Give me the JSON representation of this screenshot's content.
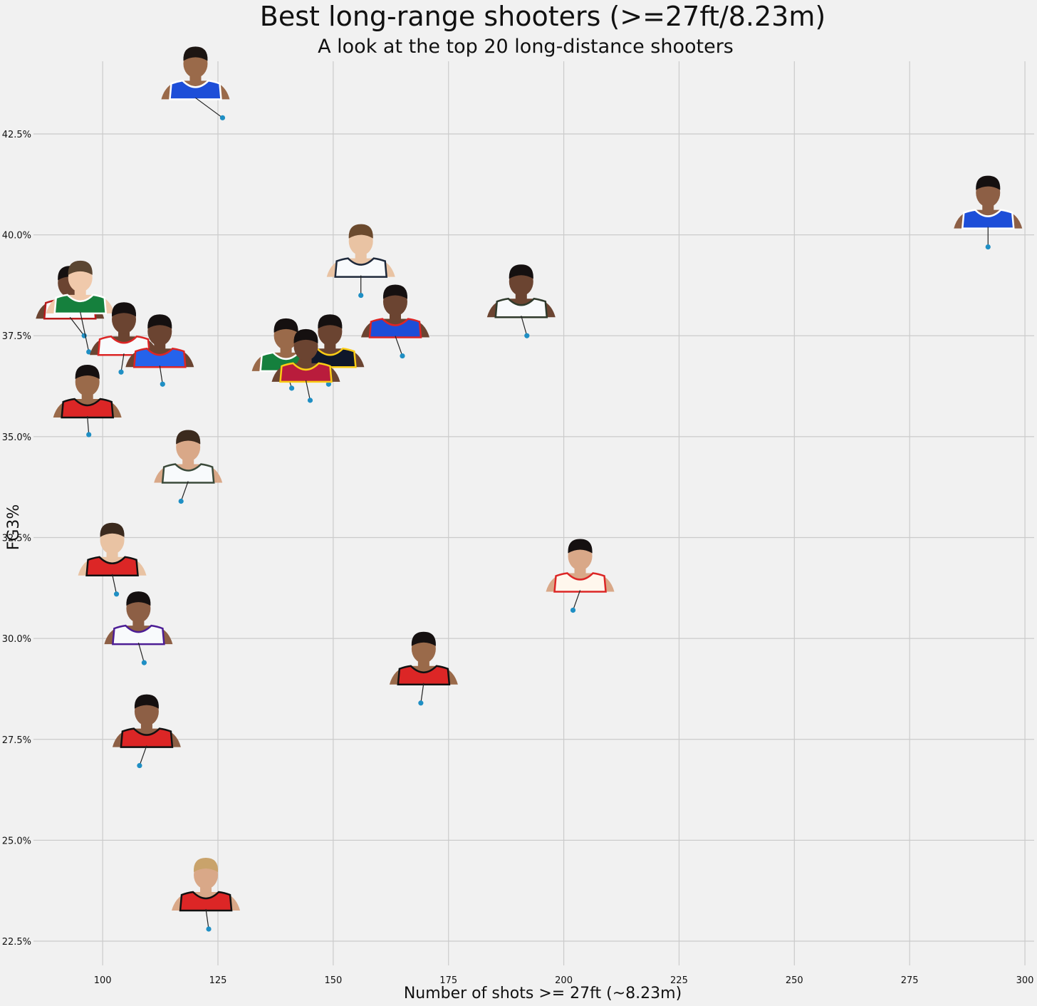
{
  "chart_data": {
    "type": "scatter",
    "title": "Best long-range shooters (>=27ft/8.23m)",
    "subtitle": "A look at the top 20 long-distance shooters",
    "xlabel": "Number of shots >= 27ft (~8.23m)",
    "ylabel": "FG3%",
    "xlim": [
      85,
      302
    ],
    "ylim": [
      21.9,
      44.3
    ],
    "xticks": [
      100,
      125,
      150,
      175,
      200,
      225,
      250,
      275,
      300
    ],
    "yticks": [
      22.5,
      25.0,
      27.5,
      30.0,
      32.5,
      35.0,
      37.5,
      40.0,
      42.5
    ],
    "ytick_labels": [
      "22.5%",
      "25.0%",
      "27.5%",
      "30.0%",
      "32.5%",
      "35.0%",
      "37.5%",
      "40.0%",
      "42.5%"
    ],
    "grid": true,
    "marker_color": "#1f8fc4",
    "points": [
      {
        "x": 126,
        "y": 42.9,
        "jersey": "#1d4ed8",
        "trim": "#ffffff",
        "skin": "#9a6a4a",
        "hair": "#1c1512"
      },
      {
        "x": 292,
        "y": 39.7,
        "jersey": "#1d4ed8",
        "trim": "#ffffff",
        "skin": "#8d5f45",
        "hair": "#151010"
      },
      {
        "x": 156,
        "y": 38.5,
        "jersey": "#f8fafc",
        "trim": "#1e293b",
        "skin": "#e9c3a3",
        "hair": "#6b4a2e"
      },
      {
        "x": 192,
        "y": 37.5,
        "jersey": "#f8fafc",
        "trim": "#2f3a2c",
        "skin": "#6b4431",
        "hair": "#151010"
      },
      {
        "x": 165,
        "y": 37.0,
        "jersey": "#1d4ed8",
        "trim": "#dc2626",
        "skin": "#6b4431",
        "hair": "#151010"
      },
      {
        "x": 96,
        "y": 37.5,
        "jersey": "#f8fafc",
        "trim": "#b91c1c",
        "skin": "#6b4431",
        "hair": "#151010"
      },
      {
        "x": 97,
        "y": 37.1,
        "jersey": "#15803d",
        "trim": "#ffffff",
        "skin": "#f0c9ab",
        "hair": "#5b4632"
      },
      {
        "x": 104,
        "y": 36.6,
        "jersey": "#f8fafc",
        "trim": "#dc2626",
        "skin": "#6b4431",
        "hair": "#151010"
      },
      {
        "x": 113,
        "y": 36.3,
        "jersey": "#2563eb",
        "trim": "#dc2626",
        "skin": "#6b4431",
        "hair": "#151010"
      },
      {
        "x": 141,
        "y": 36.2,
        "jersey": "#15803d",
        "trim": "#ffffff",
        "skin": "#9a6a4a",
        "hair": "#151010"
      },
      {
        "x": 149,
        "y": 36.3,
        "jersey": "#0f172a",
        "trim": "#facc15",
        "skin": "#6b4431",
        "hair": "#151010"
      },
      {
        "x": 145,
        "y": 35.9,
        "jersey": "#b91c3c",
        "trim": "#facc15",
        "skin": "#6b4431",
        "hair": "#151010"
      },
      {
        "x": 97,
        "y": 35.05,
        "jersey": "#dc2626",
        "trim": "#111111",
        "skin": "#9a6a4a",
        "hair": "#151010"
      },
      {
        "x": 117,
        "y": 33.4,
        "jersey": "#f8fafc",
        "trim": "#3b4a3a",
        "skin": "#d9a888",
        "hair": "#3b2a1e"
      },
      {
        "x": 103,
        "y": 31.1,
        "jersey": "#dc2626",
        "trim": "#111111",
        "skin": "#e9c3a3",
        "hair": "#3b2a1e"
      },
      {
        "x": 202,
        "y": 30.7,
        "jersey": "#fff7ed",
        "trim": "#dc2626",
        "skin": "#d9a888",
        "hair": "#151010"
      },
      {
        "x": 109,
        "y": 29.4,
        "jersey": "#f8fafc",
        "trim": "#4c1d95",
        "skin": "#8d5f45",
        "hair": "#151010"
      },
      {
        "x": 169,
        "y": 28.4,
        "jersey": "#dc2626",
        "trim": "#111111",
        "skin": "#9a6a4a",
        "hair": "#151010"
      },
      {
        "x": 108,
        "y": 26.85,
        "jersey": "#dc2626",
        "trim": "#111111",
        "skin": "#8d5f45",
        "hair": "#151010"
      },
      {
        "x": 123,
        "y": 22.8,
        "jersey": "#dc2626",
        "trim": "#111111",
        "skin": "#d9a888",
        "hair": "#c9a36b"
      }
    ]
  }
}
